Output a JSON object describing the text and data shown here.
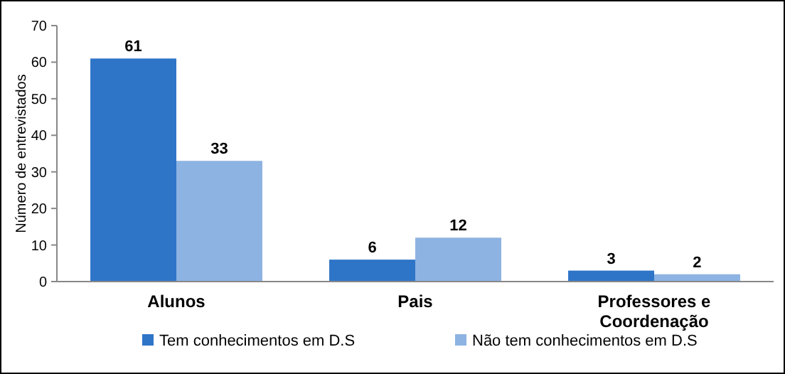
{
  "chart_data": {
    "type": "bar",
    "ylabel": "Número de entrevistados",
    "categories": [
      "Alunos",
      "Pais",
      "Professores e Coordenação"
    ],
    "series": [
      {
        "name": "Tem conhecimentos em D.S",
        "color": "#2e75c8",
        "values": [
          61,
          6,
          3
        ]
      },
      {
        "name": "Não tem conhecimentos em D.S",
        "color": "#8db3e2",
        "values": [
          33,
          12,
          2
        ]
      }
    ],
    "ylim": [
      0,
      70
    ],
    "yticks": [
      0,
      10,
      20,
      30,
      40,
      50,
      60,
      70
    ],
    "grid": false,
    "data_labels": true,
    "legend": "bottom"
  }
}
